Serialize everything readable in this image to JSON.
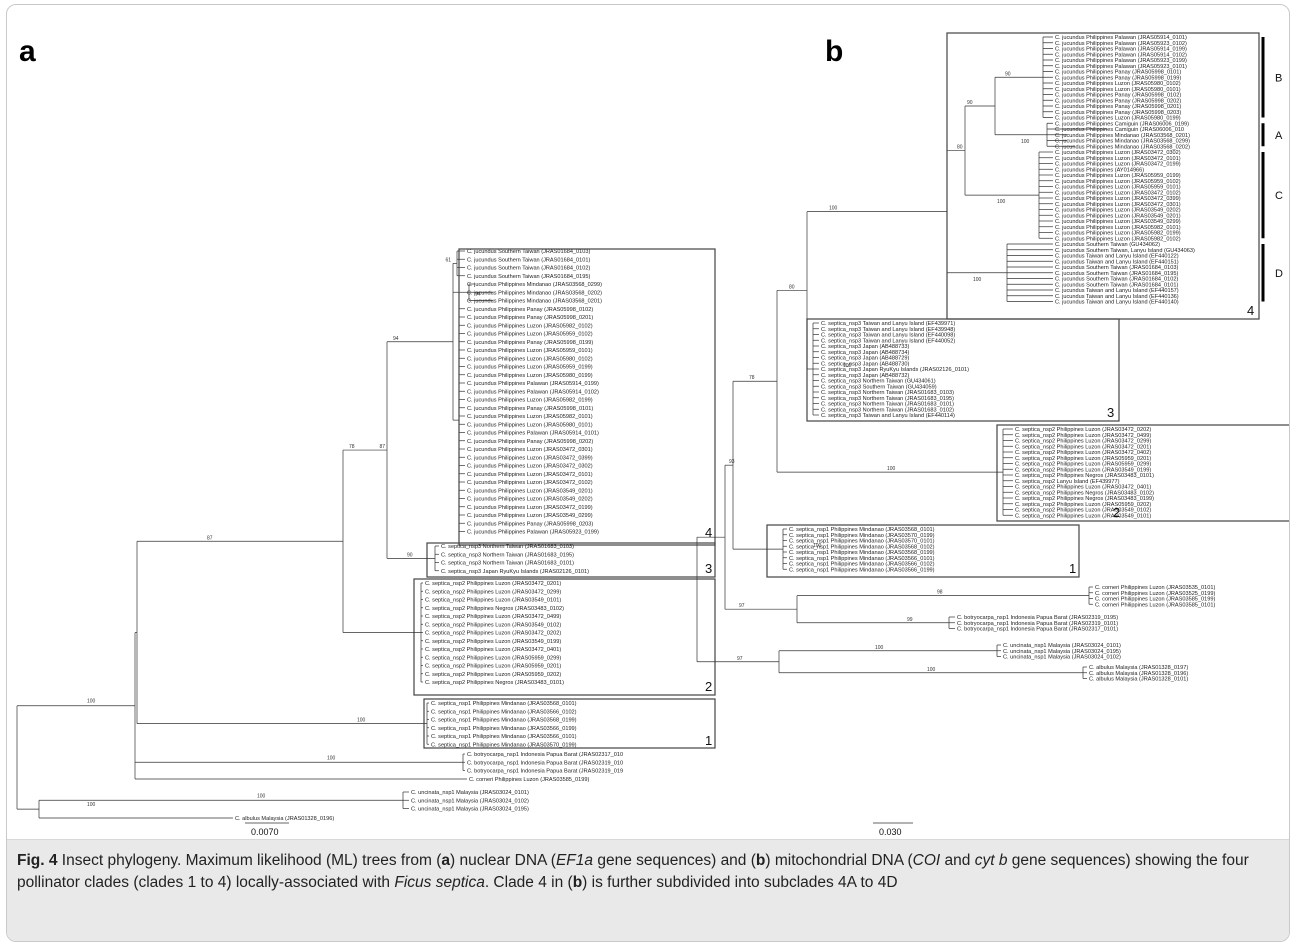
{
  "panel_a": {
    "letter": "a",
    "scale_label": "0.0070",
    "leaves": [
      "C. jucundus Southern Taiwan (JRAS01684_0103)",
      "C. jucundus Southern Taiwan (JRAS01684_0101)",
      "C. jucundus Southern Taiwan (JRAS01684_0102)",
      "C. jucundus Southern Taiwan (JRAS01684_0195)",
      "C. jucundus Philippines Mindanao (JRAS03568_0299)",
      "C. jucundus Philippines Mindanao (JRAS03568_0202)",
      "C. jucundus Philippines Mindanao (JRAS03568_0201)",
      "C. jucundus Philippines Panay (JRAS05998_0102)",
      "C. jucundus Philippines Panay (JRAS05998_0201)",
      "C. jucundus Philippines Luzon (JRAS05982_0102)",
      "C. jucundus Philippines Luzon (JRAS05959_0102)",
      "C. jucundus Philippines Panay (JRAS05998_0199)",
      "C. jucundus Philippines Luzon (JRAS05959_0101)",
      "C. jucundus Philippines Luzon (JRAS05980_0102)",
      "C. jucundus Philippines Luzon (JRAS05959_0199)",
      "C. jucundus Philippines Luzon (JRAS05980_0199)",
      "C. jucundus Philippines Palawan (JRAS05914_0199)",
      "C. jucundus Philippines Palawan (JRAS05914_0102)",
      "C. jucundus Philippines Luzon (JRAS05982_0199)",
      "C. jucundus Philippines Panay (JRAS05998_0101)",
      "C. jucundus Philippines Luzon (JRAS05982_0101)",
      "C. jucundus Philippines Luzon (JRAS05980_0101)",
      "C. jucundus Philippines Palawan (JRAS05914_0101)",
      "C. jucundus Philippines Panay (JRAS05998_0202)",
      "C. jucundus Philippines Luzon (JRAS03472_0301)",
      "C. jucundus Philippines Luzon (JRAS03472_0399)",
      "C. jucundus Philippines Luzon (JRAS03472_0302)",
      "C. jucundus Philippines Luzon (JRAS03472_0101)",
      "C. jucundus Philippines Luzon (JRAS03472_0102)",
      "C. jucundus Philippines Luzon (JRAS03549_0201)",
      "C. jucundus Philippines Luzon (JRAS03549_0202)",
      "C. jucundus Philippines Luzon (JRAS03472_0199)",
      "C. jucundus Philippines Luzon (JRAS03549_0299)",
      "C. jucundus Philippines Panay (JRAS05998_0203)",
      "C. jucundus Philippines Palawan (JRAS05923_0199)",
      "C. septica_nsp3 Northern Taiwan (JRAS01683_0103)",
      "C. septica_nsp3 Northern Taiwan (JRAS01683_0195)",
      "C. septica_nsp3 Northern Taiwan (JRAS01683_0101)",
      "C. septica_nsp3 Japan RyuKyu Islands (JRAS02126_0101)",
      "C. septica_nsp2 Philippines Luzon (JRAS03472_0201)",
      "C. septica_nsp2 Philippines Luzon (JRAS03472_0299)",
      "C. septica_nsp2 Philippines Luzon (JRAS03549_0101)",
      "C. septica_nsp2 Philippines Negros (JRAS03483_0102)",
      "C. septica_nsp2 Philippines Luzon (JRAS03472_0499)",
      "C. septica_nsp2 Philippines Luzon (JRAS03549_0102)",
      "C. septica_nsp2 Philippines Luzon (JRAS03472_0202)",
      "C. septica_nsp2 Philippines Luzon (JRAS03549_0199)",
      "C. septica_nsp2 Philippines Luzon (JRAS03472_0401)",
      "C. septica_nsp2 Philippines Luzon (JRAS05959_0299)",
      "C. septica_nsp2 Philippines Luzon (JRAS05959_0201)",
      "C. septica_nsp2 Philippines Luzon (JRAS05959_0202)",
      "C. septica_nsp2 Philippines Negros (JRAS03483_0101)",
      "C. septica_nsp1 Philippines Mindanao (JRAS03568_0101)",
      "C. septica_nsp1 Philippines Mindanao (JRAS03566_0102)",
      "C. septica_nsp1 Philippines Mindanao (JRAS03568_0199)",
      "C. septica_nsp1 Philippines Mindanao (JRAS03566_0199)",
      "C. septica_nsp1 Philippines Mindanao (JRAS03566_0101)",
      "C. septica_nsp1 Philippines Mindanao (JRAS03570_0199)",
      "C. botryocarpa_nsp1 Indonesia Papua Barat (JRAS02317_010",
      "C. botryocarpa_nsp1 Indonesia Papua Barat (JRAS02319_010",
      "C. botryocarpa_nsp1 Indonesia Papua Barat (JRAS02319_019",
      "C. corneri Philippines Luzon (JRAS03585_0199)",
      "C. uncinata_nsp1 Malaysia (JRAS03024_0101)",
      "C. uncinata_nsp1 Malaysia (JRAS03024_0102)",
      "C. uncinata_nsp1 Malaysia (JRAS03024_0195)",
      "C. albulus Malaysia (JRAS01328_0196)"
    ],
    "support": {
      "clade4_stem": "94",
      "clades34": "87",
      "clade3_stem": "90",
      "clade2_stem": "78",
      "big_clade": "87",
      "clade1_stem": "100",
      "ingroup": "100",
      "outgroup_node": "100",
      "root_node": "100",
      "taiwan": "61",
      "mindanao": "94",
      "uncinata": "100"
    },
    "clade_numbers": [
      "4",
      "3",
      "2",
      "1"
    ]
  },
  "panel_b": {
    "letter": "b",
    "scale_label": "0.030",
    "leaves": [
      "C. jucundus Philippines Palawan (JRAS05914_0101)",
      "C. jucundus Philippines Palawan (JRAS05923_0102)",
      "C. jucundus Philippines Palawan (JRAS05914_0199)",
      "C. jucundus Philippines Palawan (JRAS05914_0102)",
      "C. jucundus Philippines Palawan (JRAS05923_0199)",
      "C. jucundus Philippines Palawan (JRAS05923_0101)",
      "C. jucundus Philippines Panay (JRAS05998_0101)",
      "C. jucundus Philippines Panay (JRAS05998_0199)",
      "C. jucundus Philippines Luzon (JRAS05980_0102)",
      "C. jucundus Philippines Luzon (JRAS05980_0101)",
      "C. jucundus Philippines Panay (JRAS05998_0102)",
      "C. jucundus Philippines Panay (JRAS05998_0202)",
      "C. jucundus Philippines Panay (JRAS05998_0201)",
      "C. jucundus Philippines Panay (JRAS05998_0203)",
      "C. jucundus Philippines Luzon (JRAS05980_0199)",
      "C. jucundus Philippines Camiguin (JRAS06006_0199)",
      "C. jucundus Philippines Camiguin (JRAS06006_010",
      "C. jucundus Philippines Mindanao (JRAS03568_0201)",
      "C. jucundus Philippines Mindanao (JRAS03568_0299)",
      "C. jucundus Philippines Mindanao (JRAS03568_0202)",
      "C. jucundus Philippines Luzon (JRAS03472_0302)",
      "C. jucundus Philippines Luzon (JRAS03472_0101)",
      "C. jucundus Philippines Luzon (JRAS03472_0199)",
      "C. jucundus Philippines (AY014966)",
      "C. jucundus Philippines Luzon (JRAS05959_0199)",
      "C. jucundus Philippines Luzon (JRAS05959_0102)",
      "C. jucundus Philippines Luzon (JRAS05959_0101)",
      "C. jucundus Philippines Luzon (JRAS03472_0102)",
      "C. jucundus Philippines Luzon (JRAS03472_0399)",
      "C. jucundus Philippines Luzon (JRAS03472_0301)",
      "C. jucundus Philippines Luzon (JRAS03549_0202)",
      "C. jucundus Philippines Luzon (JRAS03549_0201)",
      "C. jucundus Philippines Luzon (JRAS03549_0299)",
      "C. jucundus Philippines Luzon (JRAS05982_0101)",
      "C. jucundus Philippines Luzon (JRAS05982_0199)",
      "C. jucundus Philippines Luzon (JRAS05982_0102)",
      "C. jucundus Southern Taiwan (GU434062)",
      "C. jucundus Southern Taiwan, Lanyu Island (GU434063)",
      "C. jucundus Taiwan and Lanyu Island (EF440122)",
      "C. jucundus Taiwan and Lanyu Island (EF440151)",
      "C. jucundus Southern Taiwan (JRAS01684_0103)",
      "C. jucundus Southern Taiwan (JRAS01684_0195)",
      "C. jucundus Southern Taiwan (JRAS01684_0102)",
      "C. jucundus Southern Taiwan (JRAS01684_0101)",
      "C. jucundus Taiwan and Lanyu Island (EF440157)",
      "C. jucundus Taiwan and Lanyu Island (EF440136)",
      "C. jucundus Taiwan and Lanyu Island (EF440140)",
      "C. septica_nsp3 Taiwan and Lanyu Island (EF439971)",
      "C. septica_nsp3 Taiwan and Lanyu Island (EF439948)",
      "C. septica_nsp3 Taiwan and Lanyu Island (EF440098)",
      "C. septica_nsp3 Taiwan and Lanyu Island (EF440052)",
      "C. septica_nsp3 Japan (AB488733)",
      "C. septica_nsp3 Japan (AB488734)",
      "C. septica_nsp3 Japan (AB488729)",
      "C. septica_nsp3 Japan (AB488730)",
      "C. septica_nsp3 Japan RyuKyu Islands (JRAS02126_0101)",
      "C. septica_nsp3 Japan (AB488732)",
      "C. septica_nsp3 Northern Taiwan (GU434061)",
      "C. septica_nsp3 Southern Taiwan (GU434059)",
      "C. septica_nsp3 Northern Taiwan (JRAS01683_0103)",
      "C. septica_nsp3 Northern Taiwan (JRAS01683_0195)",
      "C. septica_nsp3 Northern Taiwan (JRAS01683_0101)",
      "C. septica_nsp3 Northern Taiwan (JRAS01683_0102)",
      "C. septica_nsp3 Taiwan and Lanyu Island (EF440114)",
      "C. septica_nsp2 Philippines Luzon (JRAS03472_0202)",
      "C. septica_nsp2 Philippines Luzon (JRAS03472_0499)",
      "C. septica_nsp2 Philippines Luzon (JRAS03472_0299)",
      "C. septica_nsp2 Philippines Luzon (JRAS03472_0201)",
      "C. septica_nsp2 Philippines Luzon (JRAS03472_0402)",
      "C. septica_nsp2 Philippines Luzon (JRAS05959_0201)",
      "C. septica_nsp2 Philippines Luzon (JRAS05959_0299)",
      "C. septica_nsp2 Philippines Luzon (JRAS03549_0199)",
      "C. septica_nsp2 Philippines Negros (JRAS03483_0101)",
      "C. septica_nsp2 Lanyu Island (EF439977)",
      "C. septica_nsp2 Philippines Luzon (JRAS03472_0401)",
      "C. septica_nsp2 Philippines Negros (JRAS03483_0102)",
      "C. septica_nsp2 Philippines Negros (JRAS03483_0199)",
      "C. septica_nsp2 Philippines Luzon (JRAS05959_0202)",
      "C. septica_nsp2 Philippines Luzon (JRAS03549_0102)",
      "C. septica_nsp2 Philippines Luzon (JRAS03549_0101)",
      "C. septica_nsp1 Philippines Mindanao (JRAS03568_0101)",
      "C. septica_nsp1 Philippines Mindanao (JRAS03570_0199)",
      "C. septica_nsp1 Philippines Mindanao (JRAS03570_0101)",
      "C. septica_nsp1 Philippines Mindanao (JRAS03568_0102)",
      "C. septica_nsp1 Philippines Mindanao (JRAS03568_0199)",
      "C. septica_nsp1 Philippines Mindanao (JRAS03566_0101)",
      "C. septica_nsp1 Philippines Mindanao (JRAS03566_0102)",
      "C. septica_nsp1 Philippines Mindanao (JRAS03566_0199)",
      "C. corneri Philippines Luzon (JRAS03535_0101)",
      "C. corneri Philippines Luzon (JRAS03525_0199)",
      "C. corneri Philippines Luzon (JRAS03585_0199)",
      "C. corneri Philippines Luzon (JRAS03585_0101)",
      "C. botryocarpa_nsp1 Indonesia Papua Barat (JRAS02319_0195)",
      "C. botryocarpa_nsp1 Indonesia Papua Barat (JRAS02319_0101)",
      "C. botryocarpa_nsp1 Indonesia Papua Barat (JRAS02317_0101)",
      "C. uncinata_nsp1 Malaysia (JRAS03024_0101)",
      "C. uncinata_nsp1 Malaysia (JRAS03024_0195)",
      "C. uncinata_nsp1 Malaysia (JRAS03024_0102)",
      "C. albulus Malaysia (JRAS01328_0197)",
      "C. albulus Malaysia (JRAS01328_0196)",
      "C. albulus Malaysia (JRAS01328_0101)"
    ],
    "support": {
      "b4_upper": "90",
      "b4_inner": "80",
      "b4_stem": "100",
      "clade3_pair": "80",
      "clade3_stem": "100",
      "clade2_stem": "78",
      "clade2_node": "100",
      "ingroup": "93",
      "clade1_stem": "100",
      "root_upper": "97",
      "outgroup_a": "98",
      "outgroup_b": "99",
      "root_lower": "97",
      "uncinata": "100",
      "albulus": "100",
      "subA": "100",
      "subB": "90",
      "subC": "100",
      "subD": "100"
    },
    "clade_numbers": [
      "4",
      "3",
      "2",
      "1"
    ],
    "subclade_letters": [
      "B",
      "A",
      "C",
      "D"
    ]
  },
  "caption": {
    "fig_label": "Fig. 4",
    "p1": " Insect phylogeny. Maximum likelihood (ML) trees from (",
    "a1": "a",
    "p2": ") nuclear DNA (",
    "gene1": "EF1a",
    "p3": " gene sequences) and (",
    "b1": "b",
    "p4": ") mitochondrial DNA (",
    "gene2": "COI",
    "p5": " and ",
    "gene3": "cyt b",
    "p6": " gene sequences) showing the four pollinator clades (clades 1 to 4) locally-associated with ",
    "species": "Ficus septica",
    "p7": ". Clade 4 in (",
    "b2": "b",
    "p8": ") is further subdivided into subclades 4A to 4D"
  }
}
